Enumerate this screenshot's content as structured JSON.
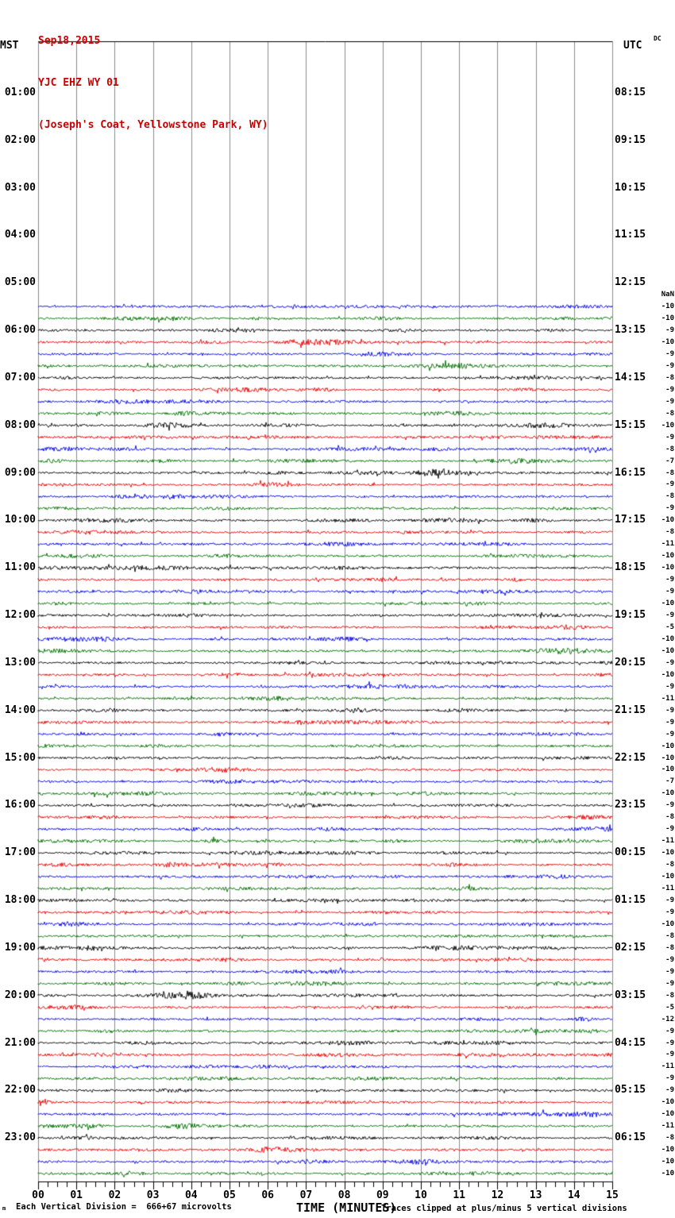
{
  "title": {
    "date": "Sep18,2015",
    "station": "YJC EHZ WY 01",
    "location": "(Joseph's Coat, Yellowstone Park, WY)"
  },
  "axes": {
    "left_label": "MST",
    "right_label": "UTC",
    "corner_label": "DC",
    "x_axis_title": "TIME (MINUTES)",
    "x_ticks": [
      "00",
      "01",
      "02",
      "03",
      "04",
      "05",
      "06",
      "07",
      "08",
      "09",
      "10",
      "11",
      "12",
      "13",
      "14",
      "15"
    ]
  },
  "left_times": [
    "01:00",
    "02:00",
    "03:00",
    "04:00",
    "05:00",
    "06:00",
    "07:00",
    "08:00",
    "09:00",
    "10:00",
    "11:00",
    "12:00",
    "13:00",
    "14:00",
    "15:00",
    "16:00",
    "17:00",
    "18:00",
    "19:00",
    "20:00",
    "21:00",
    "22:00",
    "23:00"
  ],
  "right_times": [
    "08:15",
    "09:15",
    "10:15",
    "11:15",
    "12:15",
    "13:15",
    "14:15",
    "15:15",
    "16:15",
    "17:15",
    "18:15",
    "19:15",
    "20:15",
    "21:15",
    "22:15",
    "23:15",
    "00:15",
    "01:15",
    "02:15",
    "03:15",
    "04:15",
    "05:15",
    "06:15"
  ],
  "footer": {
    "left_glyph": "m",
    "scale_note": "Each Vertical Division =  666+67 microvolts",
    "clip_note": "Traces clipped at plus/minus 5 vertical divisions"
  },
  "colors": {
    "black": "#000000",
    "red": "#ee0000",
    "blue": "#0000ee",
    "green": "#007000",
    "grid": "#8c8c8c",
    "axis": "#000000",
    "title": "#cc0000"
  },
  "chart_data": {
    "type": "line",
    "subtype": "helicorder-seismogram",
    "title": "YJC EHZ WY 01 webicorder, Sep18,2015",
    "xlabel": "TIME (MINUTES)",
    "x_range_minutes": [
      0,
      15
    ],
    "minutes_per_line": 15,
    "lines_per_hour": 4,
    "grid": "vertical-minute-lines",
    "quarter_colors": {
      "00": "black",
      "15": "red",
      "30": "blue",
      "45": "green"
    },
    "no_data_before_mst": "05:15",
    "first_trace_mst": "05:30",
    "last_trace_mst": "23:45",
    "row_times_mst": [
      "05:15",
      "05:30",
      "05:45",
      "06:00",
      "06:15",
      "06:30",
      "06:45",
      "07:00",
      "07:15",
      "07:30",
      "07:45",
      "08:00",
      "08:15",
      "08:30",
      "08:45",
      "09:00",
      "09:15",
      "09:30",
      "09:45",
      "10:00",
      "10:15",
      "10:30",
      "10:45",
      "11:00",
      "11:15",
      "11:30",
      "11:45",
      "12:00",
      "12:15",
      "12:30",
      "12:45",
      "13:00",
      "13:15",
      "13:30",
      "13:45",
      "14:00",
      "14:15",
      "14:30",
      "14:45",
      "15:00",
      "15:15",
      "15:30",
      "15:45",
      "16:00",
      "16:15",
      "16:30",
      "16:45",
      "17:00",
      "17:15",
      "17:30",
      "17:45",
      "18:00",
      "18:15",
      "18:30",
      "18:45",
      "19:00",
      "19:15",
      "19:30",
      "19:45",
      "20:00",
      "20:15",
      "20:30",
      "20:45",
      "21:00",
      "21:15",
      "21:30",
      "21:45",
      "22:00",
      "22:15",
      "22:30",
      "22:45",
      "23:00",
      "23:15",
      "23:30",
      "23:45"
    ],
    "row_values": [
      "NaN",
      -10,
      -10,
      -9,
      -10,
      -9,
      -9,
      -8,
      -9,
      -9,
      -8,
      -10,
      -9,
      -8,
      -7,
      -8,
      -9,
      -8,
      -9,
      -10,
      -8,
      -11,
      -10,
      -10,
      -9,
      -9,
      -10,
      -9,
      -5,
      -10,
      -10,
      -9,
      -10,
      -9,
      -11,
      -9,
      -9,
      -9,
      -10,
      -10,
      -10,
      -7,
      -10,
      -9,
      -8,
      -9,
      -11,
      -10,
      -8,
      -10,
      -11,
      -9,
      -9,
      -10,
      -8,
      -8,
      -9,
      -9,
      -9,
      -8,
      -5,
      -12,
      -9,
      -9,
      -9,
      -11,
      -9,
      -9,
      -10,
      -10,
      -11,
      -8,
      -10,
      -10,
      -10
    ],
    "events": [
      {
        "time_mst": "09:00",
        "minute": 10.3,
        "width_minutes": 1.0,
        "relative_gain": 2.8
      }
    ]
  }
}
